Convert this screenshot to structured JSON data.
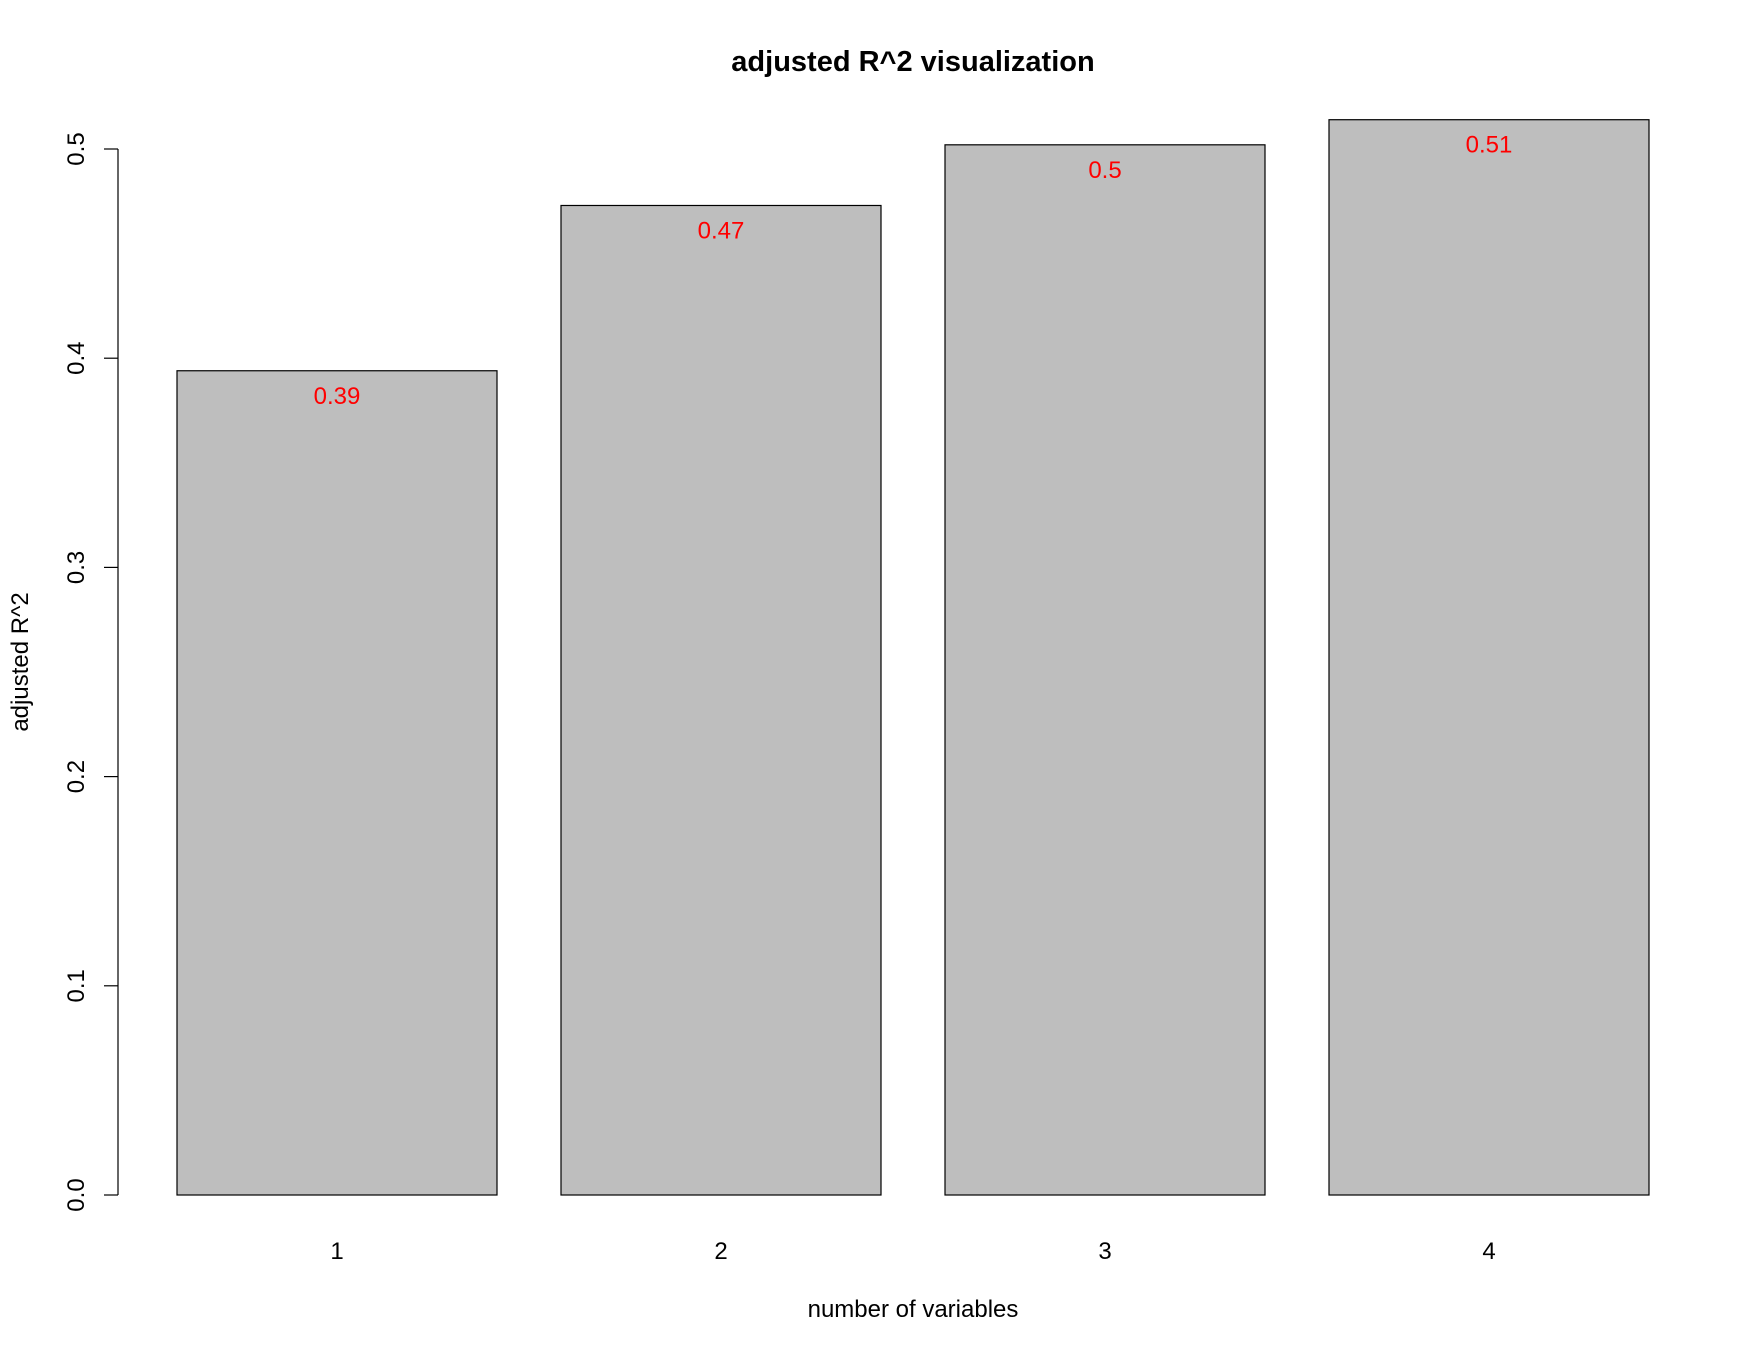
{
  "chart_data": {
    "type": "bar",
    "title": "adjusted R^2 visualization",
    "xlabel": "number of variables",
    "ylabel": "adjusted R^2",
    "categories": [
      "1",
      "2",
      "3",
      "4"
    ],
    "values": [
      0.394,
      0.473,
      0.502,
      0.514
    ],
    "data_labels": [
      "0.39",
      "0.47",
      "0.5",
      "0.51"
    ],
    "ylim": [
      0,
      0.5
    ],
    "yticks": [
      0.0,
      0.1,
      0.2,
      0.3,
      0.4,
      0.5
    ],
    "ytick_labels": [
      "0.0",
      "0.1",
      "0.2",
      "0.3",
      "0.4",
      "0.5"
    ],
    "grid": false,
    "legend": "none",
    "bar_color": "#bebebe",
    "label_color": "#ff0000"
  }
}
